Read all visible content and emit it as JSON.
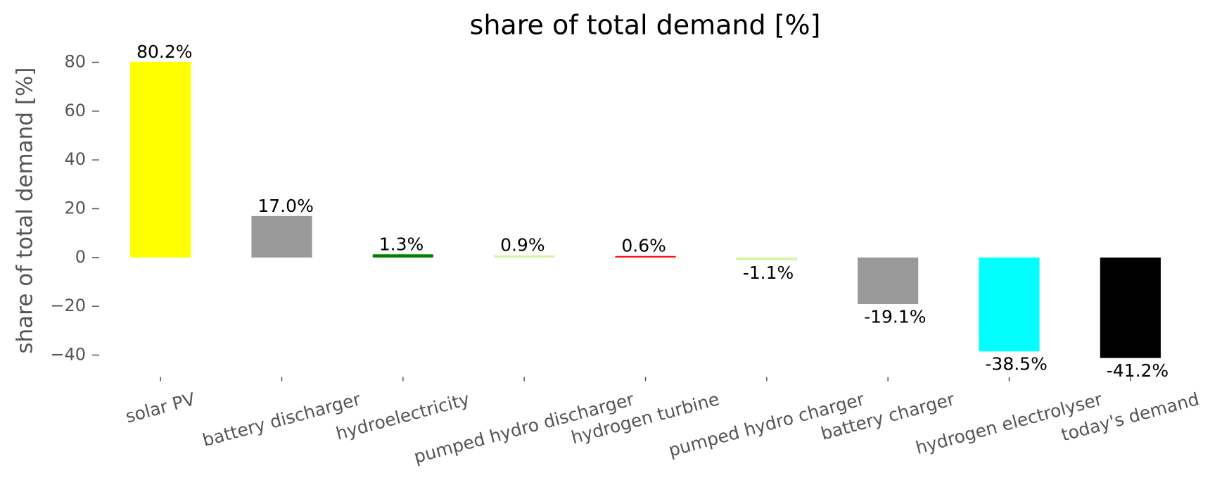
{
  "chart_data": {
    "type": "bar",
    "title": "share of total demand [%]",
    "y_label": "share of total demand [%]",
    "categories": [
      "solar PV",
      "battery discharger",
      "hydroelectricity",
      "pumped hydro discharger",
      "hydrogen turbine",
      "pumped hydro charger",
      "battery charger",
      "hydrogen electrolyser",
      "today's demand"
    ],
    "values": [
      80.2,
      17.0,
      1.3,
      0.9,
      0.6,
      -1.1,
      -19.1,
      -38.5,
      -41.2
    ],
    "value_labels": [
      "80.2%",
      "17.0%",
      "1.3%",
      "0.9%",
      "0.6%",
      "-1.1%",
      "-19.1%",
      "-38.5%",
      "-41.2%"
    ],
    "colors": [
      "#ffff00",
      "#999999",
      "#008000",
      "#d4f5a0",
      "#ff0000",
      "#d4f5a0",
      "#999999",
      "#00ffff",
      "#000000"
    ],
    "ylim": [
      -49,
      84
    ],
    "yticks": [
      {
        "value": -40,
        "label": "−40"
      },
      {
        "value": -20,
        "label": "−20"
      },
      0,
      20,
      40,
      60,
      80
    ],
    "grid": false
  }
}
